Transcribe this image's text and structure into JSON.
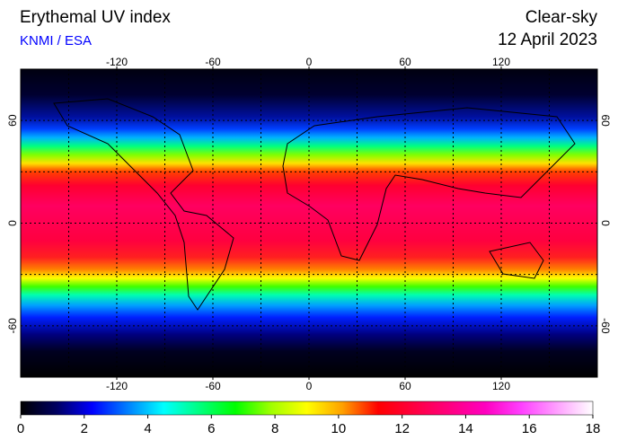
{
  "chart_data": {
    "type": "map",
    "title": "Erythemal UV index",
    "source": "KNMI / ESA",
    "sky": "Clear-sky",
    "date": "12 April 2023",
    "xlim": [
      -180,
      180
    ],
    "ylim": [
      -90,
      90
    ],
    "xticks": [
      -120,
      -60,
      0,
      60,
      120
    ],
    "yticks": [
      -60,
      0,
      60
    ],
    "xgrid": [
      -150,
      -120,
      -90,
      -60,
      -30,
      0,
      30,
      60,
      90,
      120,
      150
    ],
    "ygrid": [
      -60,
      -30,
      0,
      30,
      60
    ],
    "colorbar": {
      "lim": [
        0,
        18
      ],
      "ticks": [
        0,
        2,
        4,
        6,
        8,
        10,
        12,
        14,
        16,
        18
      ],
      "colors": [
        "#000000",
        "#000060",
        "#0000ff",
        "#0080ff",
        "#00ffff",
        "#00ff80",
        "#00ff00",
        "#a0ff00",
        "#ffff00",
        "#ffa000",
        "#ff0000",
        "#ff0040",
        "#ff0080",
        "#ff00c0",
        "#ff40ff",
        "#ffa0ff",
        "#ffffff"
      ]
    }
  }
}
